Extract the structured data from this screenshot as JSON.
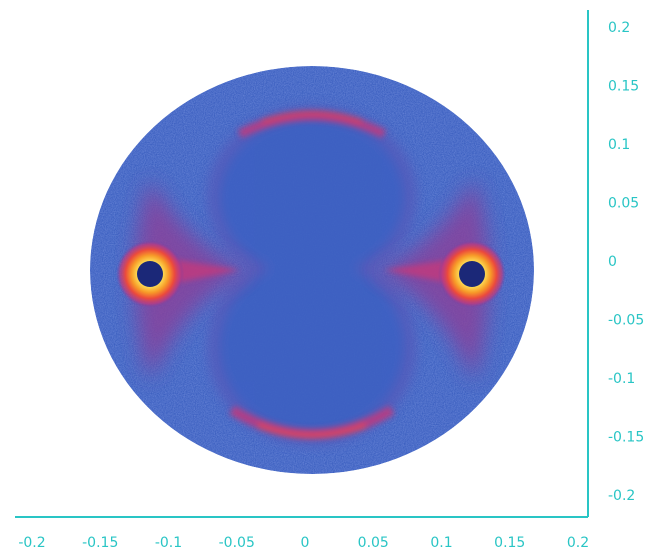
{
  "chart_data": {
    "type": "heatmap",
    "xlim": [
      -0.2,
      0.2
    ],
    "ylim": [
      -0.2,
      0.2
    ],
    "x_ticks": [
      "-0.2",
      "-0.15",
      "-0.1",
      "-0.05",
      "0",
      "0.05",
      "0.1",
      "0.15",
      "0.2"
    ],
    "x_tick_values": [
      -0.2,
      -0.15,
      -0.1,
      -0.05,
      0,
      0.05,
      0.1,
      0.15,
      0.2
    ],
    "y_ticks": [
      "0.2",
      "0.15",
      "0.1",
      "0.05",
      "0",
      "-0.05",
      "-0.1",
      "-0.15",
      "-0.2"
    ],
    "y_tick_values": [
      0.2,
      0.15,
      0.1,
      0.05,
      0,
      -0.05,
      -0.1,
      -0.15,
      -0.2
    ],
    "axis_color": "#29c5c5",
    "background_color": "#3a5fbf",
    "colormap": [
      "#3a5fbf",
      "#6a3fa8",
      "#c03a7e",
      "#ec4a3c",
      "#f79a28",
      "#fde45a"
    ],
    "grid": false,
    "legend": "none",
    "features": {
      "hot_spots": [
        {
          "x": -0.126,
          "y": -0.011
        },
        {
          "x": 0.126,
          "y": -0.011
        }
      ],
      "arcs": [
        {
          "x": 0.0,
          "y": 0.124
        },
        {
          "x": 0.0,
          "y": -0.148
        }
      ]
    }
  }
}
